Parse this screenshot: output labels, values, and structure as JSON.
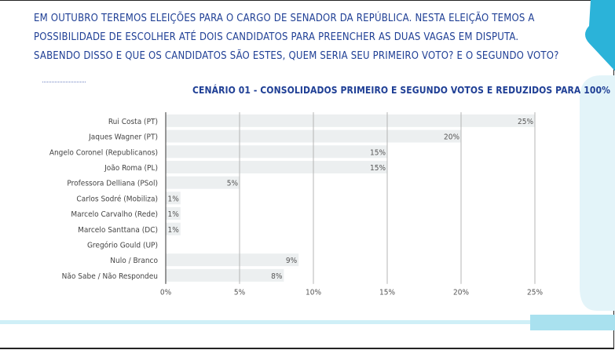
{
  "intro": {
    "line1": "Em outubro teremos eleições para o cargo de Senador da República. Nesta eleição temos a",
    "line2": "possibilidade de escolher até dois candidatos para preencher as duas vagas em disputa.",
    "line3": "Sabendo disso e que os candidatos são estes, quem seria seu primeiro voto? E o segundo voto?"
  },
  "colors": {
    "accent": "#1f3f95",
    "bar": "#eceff0",
    "grid": "#b5b5b5",
    "deco_blue": "#2bb3d9",
    "deco_light": "#d8f2f8"
  },
  "chart_data": {
    "type": "bar",
    "orientation": "horizontal",
    "title": "CENÁRIO 01 - CONSOLIDADOS PRIMEIRO E SEGUNDO VOTOS E REDUZIDOS PARA 100%",
    "categories": [
      "Rui Costa (PT)",
      "Jaques Wagner (PT)",
      "Angelo Coronel (Republicanos)",
      "João Roma (PL)",
      "Professora Delliana (PSol)",
      "Carlos Sodré (Mobiliza)",
      "Marcelo Carvalho (Rede)",
      "Marcelo Santtana (DC)",
      "Gregório Gould (UP)",
      "Nulo / Branco",
      "Não Sabe / Não Respondeu"
    ],
    "values": [
      25,
      20,
      15,
      15,
      5,
      1,
      1,
      1,
      0,
      9,
      8
    ],
    "data_labels": [
      "25%",
      "20%",
      "15%",
      "15%",
      "5%",
      "1%",
      "1%",
      "1%",
      "",
      "9%",
      "8%"
    ],
    "xlim": [
      0,
      25
    ],
    "xticks": [
      "0%",
      "5%",
      "10%",
      "15%",
      "20%",
      "25%"
    ],
    "grid": true
  }
}
